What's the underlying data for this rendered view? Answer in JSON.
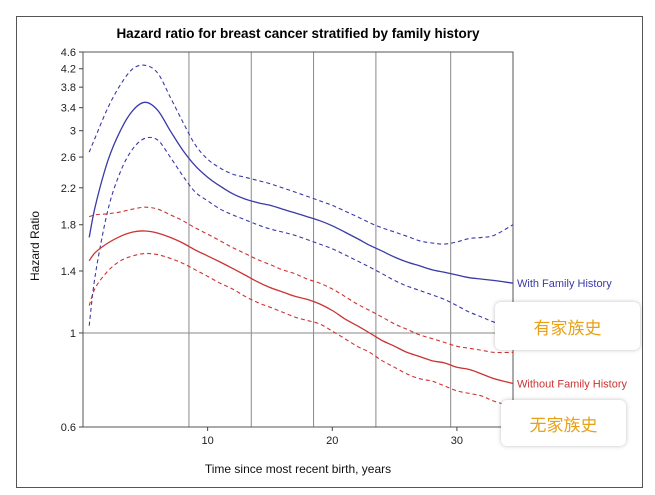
{
  "chart_data": {
    "type": "line",
    "title": "Hazard ratio for breast cancer stratified by family history",
    "xlabel": "Time since most recent birth, years",
    "ylabel": "Hazard Ratio",
    "y_scale": "log",
    "xlim": [
      0,
      34.5
    ],
    "ylim": [
      0.6,
      4.6
    ],
    "x_ticks": [
      "10",
      "20",
      "30"
    ],
    "y_ticks": [
      "0.6",
      "1",
      "1.4",
      "1.8",
      "2.2",
      "2.6",
      "3",
      "3.4",
      "3.8",
      "4.2",
      "4.6"
    ],
    "grid": {
      "vertical_x": [
        8.5,
        13.5,
        18.5,
        23.5,
        29.5
      ],
      "reference_y": 1
    },
    "x": [
      0.5,
      1,
      2,
      3,
      4,
      5,
      6,
      7,
      8,
      9,
      10,
      11,
      12,
      13,
      14,
      15,
      16,
      17,
      18,
      19,
      20,
      21,
      22,
      23,
      24,
      25,
      26,
      27,
      28,
      29,
      30,
      31,
      32,
      33,
      34.5
    ],
    "series": [
      {
        "name": "With Family History",
        "color": "#3a3aa8",
        "line_style": "solid",
        "values": [
          1.68,
          2.0,
          2.55,
          3.0,
          3.35,
          3.5,
          3.35,
          3.0,
          2.7,
          2.48,
          2.33,
          2.22,
          2.13,
          2.07,
          2.03,
          2.0,
          1.96,
          1.92,
          1.88,
          1.84,
          1.79,
          1.73,
          1.67,
          1.61,
          1.56,
          1.51,
          1.47,
          1.44,
          1.41,
          1.39,
          1.37,
          1.35,
          1.34,
          1.33,
          1.31
        ]
      },
      {
        "name": "With Family History upper 95% CI",
        "color": "#3a3aa8",
        "line_style": "dashed",
        "values": [
          2.67,
          2.9,
          3.4,
          3.85,
          4.2,
          4.28,
          4.1,
          3.6,
          3.15,
          2.78,
          2.57,
          2.45,
          2.37,
          2.33,
          2.29,
          2.25,
          2.2,
          2.15,
          2.1,
          2.05,
          2.0,
          1.94,
          1.88,
          1.82,
          1.77,
          1.73,
          1.69,
          1.65,
          1.63,
          1.62,
          1.64,
          1.67,
          1.68,
          1.7,
          1.8
        ]
      },
      {
        "name": "With Family History lower 95% CI",
        "color": "#3a3aa8",
        "line_style": "dashed",
        "values": [
          1.04,
          1.38,
          1.95,
          2.4,
          2.72,
          2.88,
          2.85,
          2.6,
          2.35,
          2.15,
          2.05,
          1.96,
          1.9,
          1.85,
          1.8,
          1.76,
          1.73,
          1.7,
          1.66,
          1.62,
          1.58,
          1.53,
          1.48,
          1.43,
          1.38,
          1.33,
          1.29,
          1.26,
          1.23,
          1.2,
          1.16,
          1.12,
          1.09,
          1.06,
          1.03
        ]
      },
      {
        "name": "Without Family History",
        "color": "#cc3333",
        "line_style": "solid",
        "values": [
          1.48,
          1.55,
          1.63,
          1.69,
          1.73,
          1.74,
          1.72,
          1.68,
          1.63,
          1.57,
          1.52,
          1.47,
          1.42,
          1.37,
          1.32,
          1.28,
          1.25,
          1.22,
          1.2,
          1.17,
          1.13,
          1.08,
          1.04,
          1.0,
          0.96,
          0.93,
          0.9,
          0.88,
          0.86,
          0.85,
          0.83,
          0.82,
          0.8,
          0.78,
          0.76
        ]
      },
      {
        "name": "Without Family History upper 95% CI",
        "color": "#cc3333",
        "line_style": "dashed",
        "values": [
          1.88,
          1.9,
          1.91,
          1.93,
          1.96,
          1.98,
          1.96,
          1.9,
          1.84,
          1.77,
          1.71,
          1.65,
          1.59,
          1.54,
          1.49,
          1.45,
          1.41,
          1.38,
          1.34,
          1.31,
          1.27,
          1.22,
          1.17,
          1.13,
          1.09,
          1.05,
          1.02,
          0.99,
          0.97,
          0.95,
          0.93,
          0.92,
          0.91,
          0.9,
          0.9
        ]
      },
      {
        "name": "Without Family History lower 95% CI",
        "color": "#cc3333",
        "line_style": "dashed",
        "values": [
          1.16,
          1.28,
          1.4,
          1.48,
          1.52,
          1.54,
          1.53,
          1.5,
          1.46,
          1.41,
          1.36,
          1.31,
          1.27,
          1.22,
          1.18,
          1.15,
          1.12,
          1.09,
          1.07,
          1.05,
          1.01,
          0.97,
          0.93,
          0.9,
          0.86,
          0.83,
          0.8,
          0.78,
          0.77,
          0.75,
          0.73,
          0.72,
          0.71,
          0.69,
          0.67
        ]
      }
    ],
    "series_labels": [
      {
        "text": "With Family History",
        "color": "#3a3aa8",
        "value": 1.31
      },
      {
        "text": "Without Family History",
        "color": "#cc3333",
        "value": 0.76
      }
    ]
  },
  "annotations": {
    "with_history_cn": "有家族史",
    "without_history_cn": "无家族史",
    "text_color": "#e8a117"
  }
}
